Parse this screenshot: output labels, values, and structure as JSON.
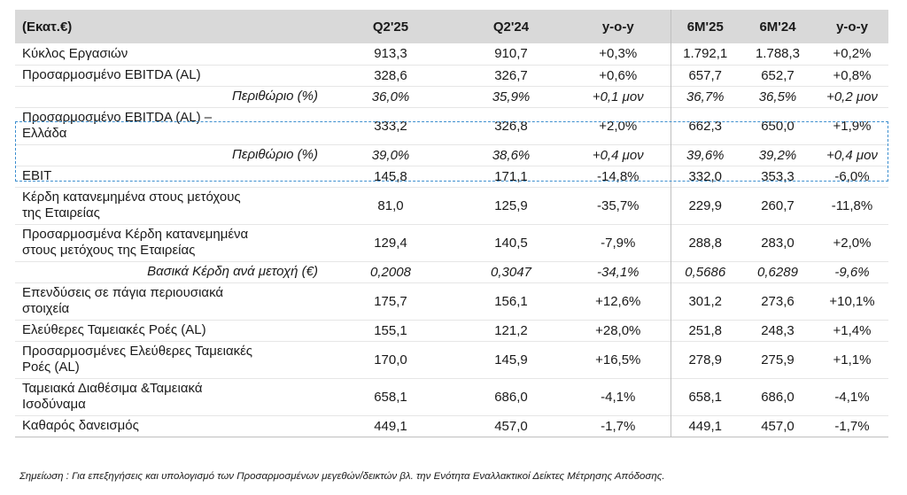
{
  "header": {
    "label": "(Εκατ.€)",
    "columns": [
      "Q2'25",
      "Q2'24",
      "y-o-y",
      "6M'25",
      "6M'24",
      "y-o-y"
    ]
  },
  "rows": [
    {
      "label": [
        "Κύκλος Εργασιών"
      ],
      "values": [
        "913,3",
        "910,7",
        "+0,3%",
        "1.792,1",
        "1.788,3",
        "+0,2%"
      ],
      "italic": false
    },
    {
      "label": [
        "Προσαρμοσμένο EBITDA (AL)"
      ],
      "values": [
        "328,6",
        "326,7",
        "+0,6%",
        "657,7",
        "652,7",
        "+0,8%"
      ],
      "italic": false
    },
    {
      "label": [
        "Περιθώριο (%)"
      ],
      "values": [
        "36,0%",
        "35,9%",
        "+0,1 μον",
        "36,7%",
        "36,5%",
        "+0,2 μον"
      ],
      "italic": true
    },
    {
      "label": [
        "Προσαρμοσμένο EBITDA (AL) –",
        "Ελλάδα"
      ],
      "values": [
        "333,2",
        "326,8",
        "+2,0%",
        "662,3",
        "650,0",
        "+1,9%"
      ],
      "italic": false
    },
    {
      "label": [
        "Περιθώριο (%)"
      ],
      "values": [
        "39,0%",
        "38,6%",
        "+0,4 μον",
        "39,6%",
        "39,2%",
        "+0,4 μον"
      ],
      "italic": true
    },
    {
      "label": [
        "EBIT"
      ],
      "values": [
        "145,8",
        "171,1",
        "-14,8%",
        "332,0",
        "353,3",
        "-6,0%"
      ],
      "italic": false
    },
    {
      "label": [
        "Κέρδη κατανεμημένα στους μετόχους",
        "της Εταιρείας"
      ],
      "values": [
        "81,0",
        "125,9",
        "-35,7%",
        "229,9",
        "260,7",
        "-11,8%"
      ],
      "italic": false
    },
    {
      "label": [
        "Προσαρμοσμένα Κέρδη κατανεμημένα",
        "στους μετόχους της Εταιρείας"
      ],
      "values": [
        "129,4",
        "140,5",
        "-7,9%",
        "288,8",
        "283,0",
        "+2,0%"
      ],
      "italic": false
    },
    {
      "label": [
        "Βασικά Κέρδη ανά μετοχή (€)"
      ],
      "values": [
        "0,2008",
        "0,3047",
        "-34,1%",
        "0,5686",
        "0,6289",
        "-9,6%"
      ],
      "italic": true
    },
    {
      "label": [
        "Επενδύσεις σε πάγια περιουσιακά",
        "στοιχεία"
      ],
      "values": [
        "175,7",
        "156,1",
        "+12,6%",
        "301,2",
        "273,6",
        "+10,1%"
      ],
      "italic": false
    },
    {
      "label": [
        "Ελεύθερες Ταμειακές Ροές (AL)"
      ],
      "values": [
        "155,1",
        "121,2",
        "+28,0%",
        "251,8",
        "248,3",
        "+1,4%"
      ],
      "italic": false
    },
    {
      "label": [
        "Προσαρμοσμένες Ελεύθερες Ταμειακές",
        "Ροές (AL)"
      ],
      "values": [
        "170,0",
        "145,9",
        "+16,5%",
        "278,9",
        "275,9",
        "+1,1%"
      ],
      "italic": false
    },
    {
      "label": [
        "Ταμειακά Διαθέσιμα &Ταμειακά",
        "Ισοδύναμα"
      ],
      "values": [
        "658,1",
        "686,0",
        "-4,1%",
        "658,1",
        "686,0",
        "-4,1%"
      ],
      "italic": false
    },
    {
      "label": [
        "Καθαρός δανεισμός"
      ],
      "values": [
        "449,1",
        "457,0",
        "-1,7%",
        "449,1",
        "457,0",
        "-1,7%"
      ],
      "italic": false
    }
  ],
  "footnote": {
    "prefix": "Σημείωση :",
    "text": "Για επεξηγήσεις και υπολογισμό των Προσαρμοσμένων μεγεθών/δεικτών βλ. την Ενότητα Εναλλακτικοί Δείκτες Μέτρησης Απόδοσης."
  }
}
